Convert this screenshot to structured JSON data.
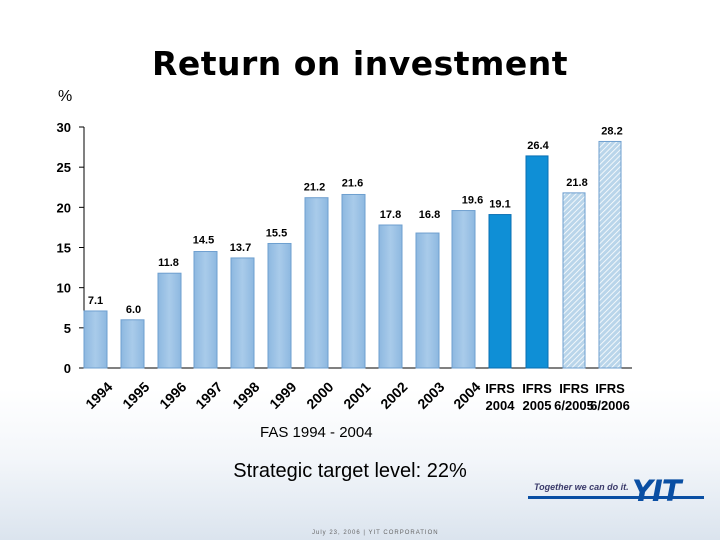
{
  "title": "Return on investment",
  "unit_label": "%",
  "chart_data": {
    "type": "bar",
    "title": "Return on investment",
    "ylabel": "%",
    "xlabel": "",
    "ylim": [
      0,
      30
    ],
    "yticks": [
      0,
      5,
      10,
      15,
      20,
      25,
      30
    ],
    "grid": false,
    "categories": [
      "1994",
      "1995",
      "1996",
      "1997",
      "1998",
      "1999",
      "2000",
      "2001",
      "2002",
      "2003",
      "2004",
      "IFRS 2004",
      "IFRS 2005",
      "IFRS 6/2005",
      "IFRS 6/2006"
    ],
    "values": [
      7.1,
      6.0,
      11.8,
      14.5,
      13.7,
      15.5,
      21.2,
      21.6,
      17.8,
      16.8,
      19.6,
      19.1,
      26.4,
      21.8,
      28.2
    ],
    "value_labels": [
      "7.1",
      "6.0",
      "11.8",
      "14.5",
      "13.7",
      "15.5",
      "21.2",
      "21.6",
      "17.8",
      "16.8",
      "19.6",
      "19.1",
      "26.4",
      "21.8",
      "28.2"
    ],
    "bar_styles": [
      "fas",
      "fas",
      "fas",
      "fas",
      "fas",
      "fas",
      "fas",
      "fas",
      "fas",
      "fas",
      "fas",
      "ifrs",
      "ifrs",
      "ifrs-interim",
      "ifrs-interim"
    ],
    "group_labels": [
      "FAS 1994 - 2004"
    ],
    "colors": {
      "fas": "#9dc3e6",
      "fas_border": "#6e9fcf",
      "ifrs": "#0f8fd6",
      "ifrs_dark": "#0a6fb3",
      "interim_fill": "#b9d5ea",
      "interim_hatch": "#ffffff"
    }
  },
  "group_label": "FAS 1994 - 2004",
  "strategic_target": "Strategic target level: 22%",
  "slogan": "Together we can do it.",
  "logo_text": "YIT",
  "footer": "July 23, 2006  |  YIT CORPORATION"
}
